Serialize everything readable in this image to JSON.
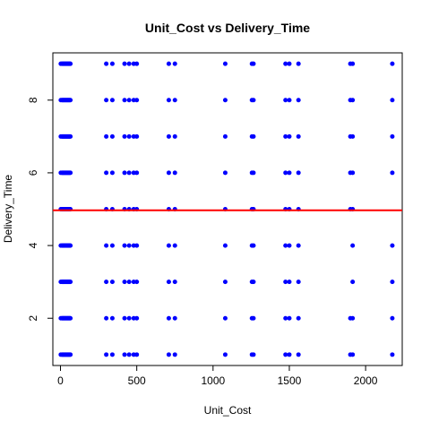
{
  "chart_data": {
    "type": "scatter",
    "title": "Unit_Cost vs Delivery_Time",
    "xlabel": "Unit_Cost",
    "ylabel": "Delivery_Time",
    "xlim": [
      -50,
      2240
    ],
    "ylim": [
      0.7,
      9.3
    ],
    "xticks": [
      0,
      500,
      1000,
      1500,
      2000
    ],
    "yticks": [
      2,
      4,
      6,
      8
    ],
    "grid": false,
    "point_color": "#0000ff",
    "trend_line": {
      "type": "horizontal",
      "y": 4.97,
      "color": "#ff0000"
    },
    "delivery_times": [
      1,
      2,
      3,
      4,
      5,
      6,
      7,
      8,
      9
    ],
    "unit_costs": [
      2,
      10,
      15,
      20,
      25,
      30,
      35,
      40,
      45,
      50,
      55,
      60,
      65,
      300,
      340,
      420,
      450,
      480,
      500,
      710,
      750,
      1080,
      1255,
      1265,
      1475,
      1500,
      1560,
      1900,
      1915,
      2175
    ],
    "missing_points": [
      {
        "x": 2175,
        "y": 5
      },
      {
        "x": 1900,
        "y": 3
      },
      {
        "x": 1900,
        "y": 4
      }
    ]
  }
}
